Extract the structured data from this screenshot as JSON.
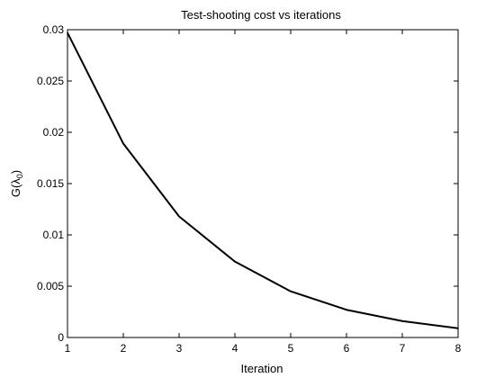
{
  "chart_data": {
    "type": "line",
    "title": "Test-shooting cost vs iterations",
    "xlabel": "Iteration",
    "ylabel": {
      "main": "G(",
      "symbol": "λ",
      "subscript": "0",
      "close": ")"
    },
    "x": [
      1,
      2,
      3,
      4,
      5,
      6,
      7,
      8
    ],
    "xlim": [
      1,
      8
    ],
    "ylim": [
      0,
      0.03
    ],
    "xticks": [
      1,
      2,
      3,
      4,
      5,
      6,
      7,
      8
    ],
    "xtick_labels": [
      "1",
      "2",
      "3",
      "4",
      "5",
      "6",
      "7",
      "8"
    ],
    "yticks": [
      0,
      0.005,
      0.01,
      0.015,
      0.02,
      0.025,
      0.03
    ],
    "ytick_labels": [
      "0",
      "0.005",
      "0.01",
      "0.015",
      "0.02",
      "0.025",
      "0.03"
    ],
    "grid": false,
    "series": [
      {
        "values": [
          0.0297,
          0.0189,
          0.0118,
          0.0074,
          0.0045,
          0.0027,
          0.0016,
          0.0009
        ],
        "color": "#000000"
      }
    ]
  }
}
